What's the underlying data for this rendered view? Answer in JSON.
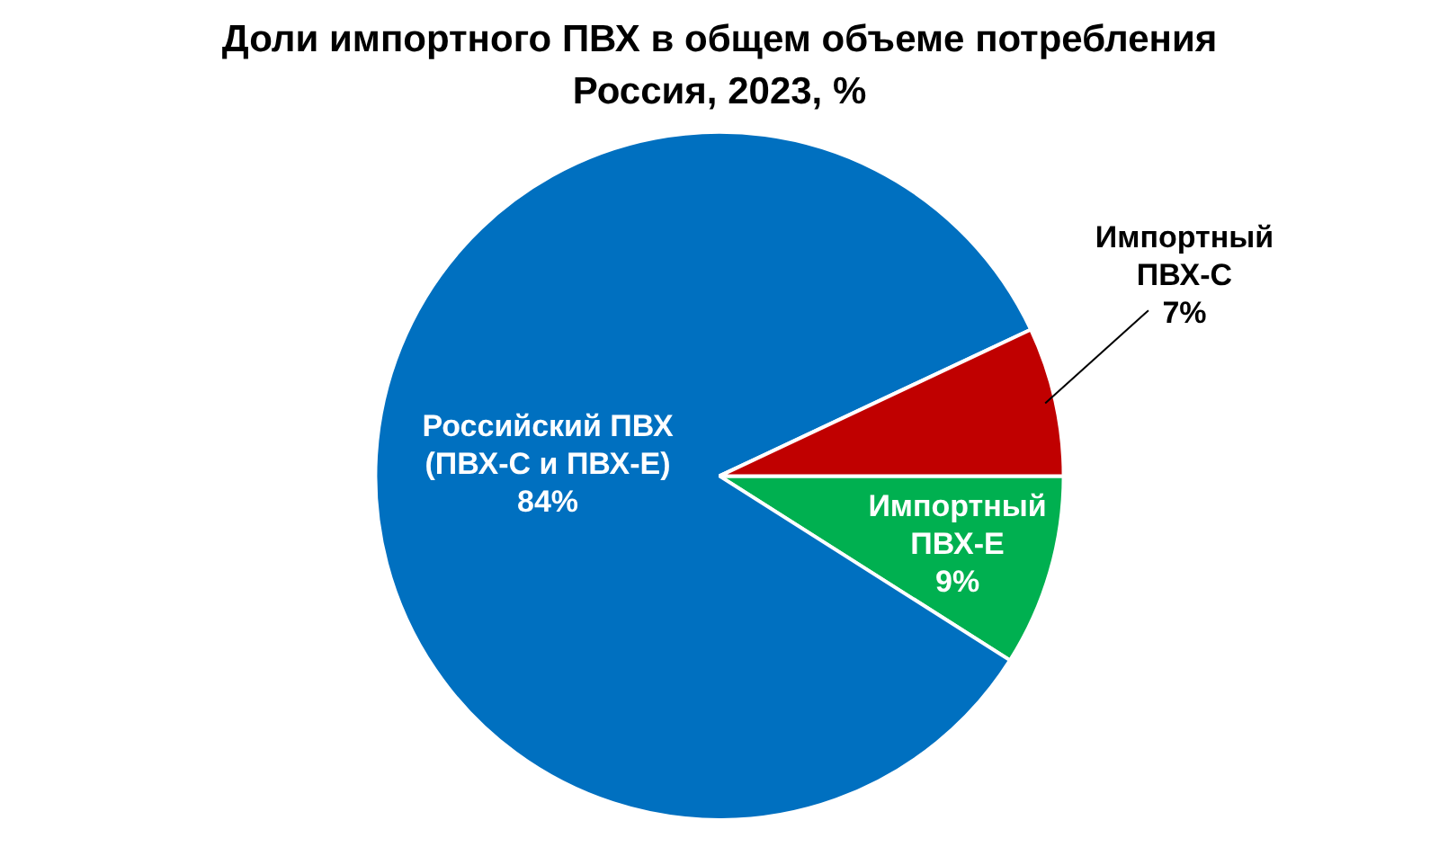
{
  "chart_data": {
    "type": "pie",
    "title": "Доли импортного ПВХ в общем объеме потребления",
    "subtitle": "Россия, 2023, %",
    "categories": [
      "Импортный\nПВХ-Е",
      "Российский ПВХ\n(ПВХ-С и ПВХ-Е)",
      "Импортный\nПВХ-С"
    ],
    "values": [
      9,
      84,
      7
    ],
    "colors": [
      "#00b050",
      "#0070c0",
      "#c00000"
    ],
    "value_labels": [
      "9%",
      "84%",
      "7%"
    ]
  }
}
